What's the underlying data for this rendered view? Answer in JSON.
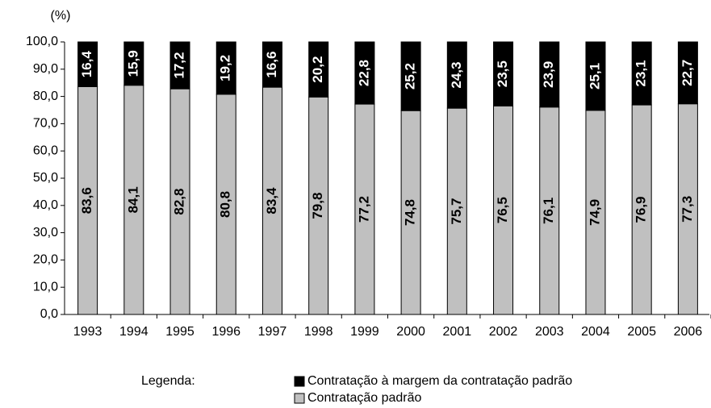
{
  "chart_data": {
    "type": "stacked_bar",
    "y_label": "(%)",
    "legend_title": "Legenda:",
    "categories": [
      "1993",
      "1994",
      "1995",
      "1996",
      "1997",
      "1998",
      "1999",
      "2000",
      "2001",
      "2002",
      "2003",
      "2004",
      "2005",
      "2006"
    ],
    "series": [
      {
        "name": "Contratação padrão",
        "color": "#c0c0c0",
        "values": [
          83.6,
          84.1,
          82.8,
          80.8,
          83.4,
          79.8,
          77.2,
          74.8,
          75.7,
          76.5,
          76.1,
          74.9,
          76.9,
          77.3
        ],
        "value_labels": [
          "83,6",
          "84,1",
          "82,8",
          "80,8",
          "83,4",
          "79,8",
          "77,2",
          "74,8",
          "75,7",
          "76,5",
          "76,1",
          "74,9",
          "76,9",
          "77,3"
        ]
      },
      {
        "name": "Contratação à margem da contratação padrão",
        "color": "#000000",
        "values": [
          16.4,
          15.9,
          17.2,
          19.2,
          16.6,
          20.2,
          22.8,
          25.2,
          24.3,
          23.5,
          23.9,
          25.1,
          23.1,
          22.7
        ],
        "value_labels": [
          "16,4",
          "15,9",
          "17,2",
          "19,2",
          "16,6",
          "20,2",
          "22,8",
          "25,2",
          "24,3",
          "23,5",
          "23,9",
          "25,1",
          "23,1",
          "22,7"
        ]
      }
    ],
    "ylim": [
      0,
      100
    ],
    "yticks": [
      {
        "value": 0,
        "label": "0,0"
      },
      {
        "value": 10,
        "label": "10,0"
      },
      {
        "value": 20,
        "label": "20,0"
      },
      {
        "value": 30,
        "label": "30,0"
      },
      {
        "value": 40,
        "label": "40,0"
      },
      {
        "value": 50,
        "label": "50,0"
      },
      {
        "value": 60,
        "label": "60,0"
      },
      {
        "value": 70,
        "label": "70,0"
      },
      {
        "value": 80,
        "label": "80,0"
      },
      {
        "value": 90,
        "label": "90,0"
      },
      {
        "value": 100,
        "label": "100,0"
      }
    ],
    "grid": false
  }
}
